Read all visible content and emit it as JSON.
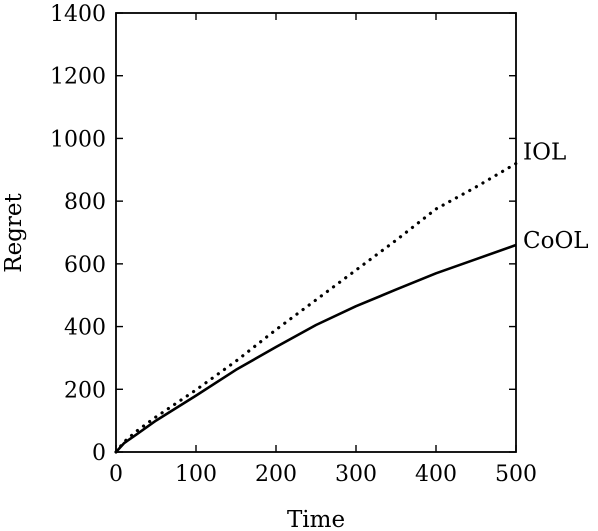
{
  "chart_data": {
    "type": "line",
    "title": "",
    "xlabel": "Time",
    "ylabel": "Regret",
    "xlim": [
      0,
      500
    ],
    "ylim": [
      0,
      1400
    ],
    "xticks": [
      "0",
      "100",
      "200",
      "300",
      "400",
      "500"
    ],
    "yticks": [
      "0",
      "200",
      "400",
      "600",
      "800",
      "1000",
      "1200",
      "1400"
    ],
    "grid": false,
    "legend": "inline-right",
    "series": [
      {
        "name": "IOL",
        "style": "dotted",
        "color": "#000000",
        "x": [
          0,
          10,
          25,
          50,
          75,
          100,
          150,
          200,
          250,
          300,
          350,
          400,
          450,
          500
        ],
        "y": [
          0,
          32,
          65,
          112,
          155,
          198,
          290,
          390,
          485,
          580,
          675,
          775,
          845,
          920
        ]
      },
      {
        "name": "CoOL",
        "style": "solid",
        "color": "#000000",
        "x": [
          0,
          10,
          25,
          50,
          75,
          100,
          150,
          200,
          250,
          300,
          350,
          400,
          450,
          500
        ],
        "y": [
          0,
          28,
          55,
          100,
          140,
          180,
          262,
          335,
          405,
          465,
          518,
          570,
          615,
          660
        ]
      }
    ]
  }
}
